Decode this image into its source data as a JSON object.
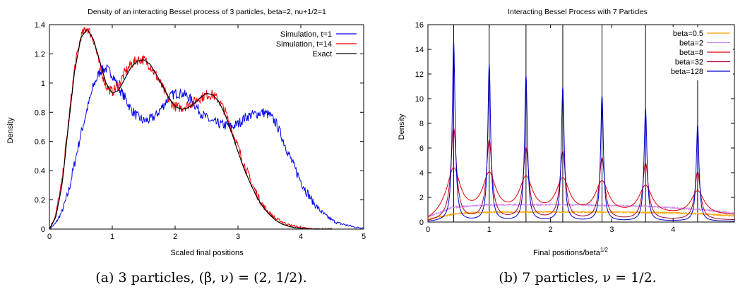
{
  "panels": [
    {
      "caption": "(a) 3 particles, (β, ν) = (2, 1/2).",
      "chart_data": {
        "type": "line",
        "title": "Density of an interacting Bessel process of 3 particles, beta=2, nu+1/2=1",
        "xlabel": "Scaled final positions",
        "ylabel": "Density",
        "xlim": [
          0,
          5
        ],
        "ylim": [
          0,
          1.4
        ],
        "xticks": [
          "0",
          "1",
          "2",
          "3",
          "4",
          "5"
        ],
        "yticks": [
          "0",
          "0.2",
          "0.4",
          "0.6",
          "0.8",
          "1",
          "1.2",
          "1.4"
        ],
        "grid": false,
        "legend_position": "top-right",
        "series": [
          {
            "name": "Simulation, t=1",
            "color": "#0000ee",
            "noisy": true,
            "x": [
              0,
              0.1,
              0.2,
              0.3,
              0.4,
              0.5,
              0.6,
              0.7,
              0.8,
              0.9,
              1.0,
              1.1,
              1.2,
              1.3,
              1.4,
              1.5,
              1.6,
              1.7,
              1.8,
              1.9,
              2.0,
              2.1,
              2.2,
              2.3,
              2.4,
              2.5,
              2.6,
              2.7,
              2.8,
              2.9,
              3.0,
              3.1,
              3.2,
              3.3,
              3.4,
              3.5,
              3.6,
              3.7,
              3.8,
              3.9,
              4.0,
              4.1,
              4.2,
              4.3,
              4.4,
              4.5,
              4.6,
              4.7,
              4.8,
              4.9,
              5.0
            ],
            "y": [
              0,
              0.04,
              0.12,
              0.25,
              0.45,
              0.65,
              0.82,
              0.98,
              1.08,
              1.1,
              1.06,
              0.97,
              0.9,
              0.82,
              0.77,
              0.74,
              0.75,
              0.78,
              0.84,
              0.9,
              0.93,
              0.93,
              0.91,
              0.86,
              0.8,
              0.76,
              0.73,
              0.72,
              0.71,
              0.7,
              0.72,
              0.76,
              0.78,
              0.79,
              0.8,
              0.78,
              0.73,
              0.63,
              0.52,
              0.42,
              0.33,
              0.25,
              0.18,
              0.13,
              0.09,
              0.06,
              0.04,
              0.03,
              0.02,
              0.01,
              0.01
            ]
          },
          {
            "name": "Simulation, t=14",
            "color": "#ee0000",
            "noisy": true,
            "x": [
              0,
              0.1,
              0.2,
              0.3,
              0.4,
              0.5,
              0.6,
              0.7,
              0.8,
              0.9,
              1.0,
              1.1,
              1.2,
              1.3,
              1.4,
              1.5,
              1.6,
              1.7,
              1.8,
              1.9,
              2.0,
              2.1,
              2.2,
              2.3,
              2.4,
              2.5,
              2.6,
              2.7,
              2.8,
              2.9,
              3.0,
              3.1,
              3.2,
              3.3,
              3.4,
              3.5,
              3.6,
              3.7,
              3.8,
              3.9,
              4.0,
              4.1,
              4.2,
              4.3,
              4.4,
              4.5
            ],
            "y": [
              0,
              0.1,
              0.32,
              0.72,
              1.1,
              1.32,
              1.38,
              1.3,
              1.12,
              0.98,
              0.94,
              0.99,
              1.07,
              1.13,
              1.16,
              1.16,
              1.12,
              1.05,
              0.97,
              0.88,
              0.84,
              0.83,
              0.85,
              0.87,
              0.9,
              0.92,
              0.92,
              0.88,
              0.8,
              0.68,
              0.56,
              0.44,
              0.33,
              0.24,
              0.16,
              0.11,
              0.07,
              0.05,
              0.03,
              0.02,
              0.01,
              0.005,
              0,
              0,
              0,
              0
            ]
          },
          {
            "name": "Exact",
            "color": "#000000",
            "noisy": false,
            "x": [
              0,
              0.1,
              0.2,
              0.3,
              0.4,
              0.5,
              0.6,
              0.7,
              0.8,
              0.9,
              1.0,
              1.1,
              1.2,
              1.3,
              1.4,
              1.5,
              1.6,
              1.7,
              1.8,
              1.9,
              2.0,
              2.1,
              2.2,
              2.3,
              2.4,
              2.5,
              2.6,
              2.7,
              2.8,
              2.9,
              3.0,
              3.1,
              3.2,
              3.3,
              3.4,
              3.5,
              3.6,
              3.7,
              3.8,
              3.9,
              4.0,
              4.1,
              4.2,
              4.3,
              4.4,
              4.5
            ],
            "y": [
              0,
              0.08,
              0.3,
              0.7,
              1.08,
              1.31,
              1.37,
              1.3,
              1.15,
              1.0,
              0.93,
              0.95,
              1.03,
              1.11,
              1.15,
              1.16,
              1.13,
              1.06,
              0.98,
              0.9,
              0.84,
              0.82,
              0.83,
              0.86,
              0.9,
              0.93,
              0.92,
              0.87,
              0.78,
              0.66,
              0.53,
              0.41,
              0.31,
              0.22,
              0.15,
              0.1,
              0.06,
              0.035,
              0.02,
              0.01,
              0.005,
              0.002,
              0,
              0,
              0,
              0
            ]
          }
        ]
      }
    },
    {
      "caption": "(b) 7 particles, ν = 1/2.",
      "chart_data": {
        "type": "line",
        "title": "Interacting Bessel Process with 7 Particles",
        "xlabel": "Final positions/beta",
        "xlabel_superscript": "1/2",
        "ylabel": "Density",
        "xlim": [
          0,
          5
        ],
        "ylim": [
          0,
          16
        ],
        "xticks": [
          "0",
          "1",
          "2",
          "3",
          "4"
        ],
        "yticks": [
          "0",
          "2",
          "4",
          "6",
          "8",
          "10",
          "12",
          "14",
          "16"
        ],
        "grid": false,
        "legend_position": "top-right",
        "vertical_lines": [
          0.42,
          1.0,
          1.6,
          2.2,
          2.84,
          3.55,
          4.4
        ],
        "peak_centers": [
          0.42,
          1.0,
          1.6,
          2.2,
          2.84,
          3.55,
          4.4
        ],
        "series": [
          {
            "name": "beta=0.5",
            "color": "#ffa500",
            "kind": "flat",
            "points": [
              [
                0,
                0.25
              ],
              [
                0.5,
                0.7
              ],
              [
                1.0,
                0.8
              ],
              [
                2.0,
                0.82
              ],
              [
                3.0,
                0.8
              ],
              [
                4.0,
                0.75
              ],
              [
                4.5,
                0.65
              ],
              [
                5.0,
                0.5
              ]
            ]
          },
          {
            "name": "beta=2",
            "color": "#cc88ee",
            "kind": "flat",
            "points": [
              [
                0,
                0.4
              ],
              [
                0.4,
                1.2
              ],
              [
                1.0,
                1.4
              ],
              [
                1.6,
                1.4
              ],
              [
                2.2,
                1.4
              ],
              [
                2.8,
                1.35
              ],
              [
                3.5,
                1.3
              ],
              [
                4.0,
                1.15
              ],
              [
                4.5,
                1.0
              ],
              [
                5.0,
                0.7
              ]
            ]
          },
          {
            "name": "beta=8",
            "color": "#dd0000",
            "kind": "peaks",
            "heights": [
              3.7,
              3.2,
              2.9,
              2.8,
              2.6,
              2.3,
              1.95
            ],
            "width": 0.13,
            "base": 0.5
          },
          {
            "name": "beta=32",
            "color": "#aa0033",
            "kind": "peaks",
            "heights": [
              7.4,
              6.4,
              5.8,
              5.5,
              5.0,
              4.6,
              3.9
            ],
            "width": 0.055,
            "base": 0.15
          },
          {
            "name": "beta=128",
            "color": "#0000cc",
            "kind": "peaks",
            "heights": [
              14.6,
              12.7,
              11.8,
              10.9,
              10.2,
              9.2,
              7.8
            ],
            "width": 0.028,
            "base": 0.05
          }
        ]
      }
    }
  ]
}
